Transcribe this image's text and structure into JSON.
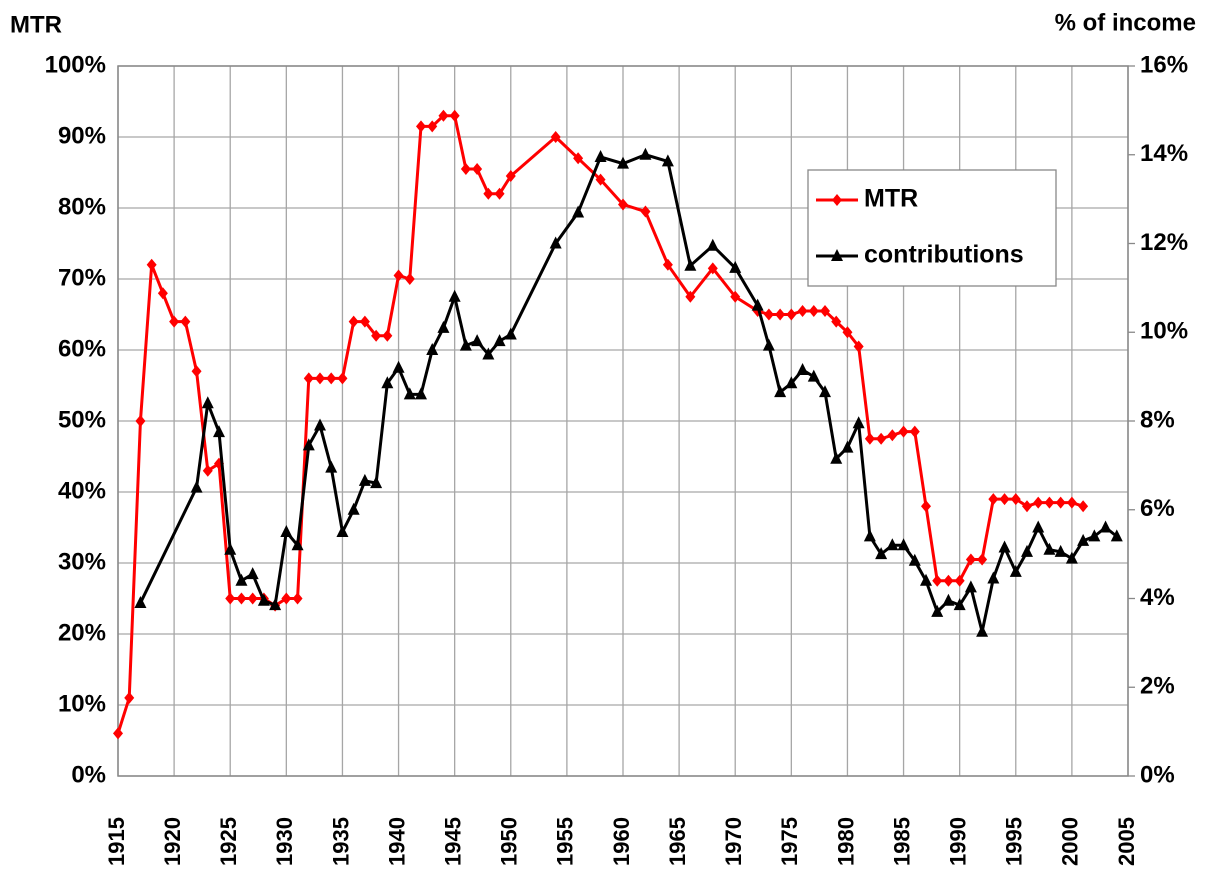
{
  "chart_data": {
    "type": "line",
    "y_label": "MTR",
    "y2_label": "% of  income",
    "xlim": [
      1915,
      2005
    ],
    "xticks": [
      1915,
      1920,
      1925,
      1930,
      1935,
      1940,
      1945,
      1950,
      1955,
      1960,
      1965,
      1970,
      1975,
      1980,
      1985,
      1990,
      1995,
      2000,
      2005
    ],
    "ylim": [
      0,
      100
    ],
    "yticks": [
      {
        "value": 0,
        "label": "0%"
      },
      {
        "value": 10,
        "label": "10%"
      },
      {
        "value": 20,
        "label": "20%"
      },
      {
        "value": 30,
        "label": "30%"
      },
      {
        "value": 40,
        "label": "40%"
      },
      {
        "value": 50,
        "label": "50%"
      },
      {
        "value": 60,
        "label": "60%"
      },
      {
        "value": 70,
        "label": "70%"
      },
      {
        "value": 80,
        "label": "80%"
      },
      {
        "value": 90,
        "label": "90%"
      },
      {
        "value": 100,
        "label": "100%"
      }
    ],
    "y2lim": [
      0,
      16
    ],
    "y2ticks": [
      {
        "value": 0,
        "label": "0%"
      },
      {
        "value": 2,
        "label": "2%"
      },
      {
        "value": 4,
        "label": "4%"
      },
      {
        "value": 6,
        "label": "6%"
      },
      {
        "value": 8,
        "label": "8%"
      },
      {
        "value": 10,
        "label": "10%"
      },
      {
        "value": 12,
        "label": "12%"
      },
      {
        "value": 14,
        "label": "14%"
      },
      {
        "value": 16,
        "label": "16%"
      }
    ],
    "grid": true,
    "legend": "upper right",
    "series": [
      {
        "name": "MTR",
        "color": "#ff0000",
        "marker": "diamond",
        "x": [
          1915,
          1916,
          1917,
          1918,
          1919,
          1920,
          1921,
          1922,
          1923,
          1924,
          1925,
          1926,
          1927,
          1928,
          1929,
          1930,
          1931,
          1932,
          1933,
          1934,
          1935,
          1936,
          1937,
          1938,
          1939,
          1940,
          1941,
          1942,
          1943,
          1944,
          1945,
          1946,
          1947,
          1948,
          1949,
          1950,
          1954,
          1956,
          1958,
          1960,
          1962,
          1964,
          1966,
          1968,
          1970,
          1972,
          1973,
          1974,
          1975,
          1976,
          1977,
          1978,
          1979,
          1980,
          1981,
          1982,
          1983,
          1984,
          1985,
          1986,
          1987,
          1988,
          1989,
          1990,
          1991,
          1992,
          1993,
          1994,
          1995,
          1996,
          1997,
          1998,
          1999,
          2000,
          2001
        ],
        "values": [
          6,
          11,
          50,
          72,
          68,
          64,
          64,
          57,
          43,
          44,
          25,
          25,
          25,
          25,
          24,
          25,
          25,
          56,
          56,
          56,
          56,
          64,
          64,
          62,
          62,
          70.5,
          70,
          91.5,
          91.5,
          93,
          93,
          85.5,
          85.5,
          82,
          82,
          84.5,
          90,
          87,
          84,
          80.5,
          79.5,
          72,
          67.5,
          71.5,
          67.5,
          65.5,
          65,
          65,
          65,
          65.5,
          65.5,
          65.5,
          64,
          62.5,
          60.5,
          47.5,
          47.5,
          48,
          48.5,
          48.5,
          38,
          27.5,
          27.5,
          27.5,
          30.5,
          30.5,
          39,
          39,
          39,
          38,
          38.5,
          38.5,
          38.5,
          38.5,
          38
        ]
      },
      {
        "name": "contributions",
        "color": "#000000",
        "marker": "triangle",
        "axis": "y2",
        "x": [
          1917,
          1922,
          1923,
          1924,
          1925,
          1926,
          1927,
          1928,
          1929,
          1930,
          1931,
          1932,
          1933,
          1934,
          1935,
          1936,
          1937,
          1938,
          1939,
          1940,
          1941,
          1942,
          1943,
          1944,
          1945,
          1946,
          1947,
          1948,
          1949,
          1950,
          1954,
          1956,
          1958,
          1960,
          1962,
          1964,
          1966,
          1968,
          1970,
          1972,
          1973,
          1974,
          1975,
          1976,
          1977,
          1978,
          1979,
          1980,
          1981,
          1982,
          1983,
          1984,
          1985,
          1986,
          1987,
          1988,
          1989,
          1990,
          1991,
          1992,
          1993,
          1994,
          1995,
          1996,
          1997,
          1998,
          1999,
          2000,
          2001,
          2002,
          2003,
          2004
        ],
        "values": [
          3.9,
          6.5,
          8.4,
          7.75,
          5.1,
          4.4,
          4.55,
          3.95,
          3.85,
          5.5,
          5.2,
          7.45,
          7.9,
          6.95,
          5.5,
          6.0,
          6.65,
          6.6,
          8.85,
          9.2,
          8.6,
          8.6,
          9.6,
          10.1,
          10.8,
          9.7,
          9.8,
          9.5,
          9.8,
          9.95,
          12.0,
          12.7,
          13.95,
          13.8,
          14.0,
          13.85,
          11.5,
          11.95,
          11.45,
          10.6,
          9.7,
          8.65,
          8.85,
          9.15,
          9.0,
          8.65,
          7.15,
          7.4,
          7.95,
          5.4,
          5.0,
          5.2,
          5.2,
          4.85,
          4.4,
          3.7,
          3.95,
          3.85,
          4.25,
          3.25,
          4.45,
          5.15,
          4.6,
          5.05,
          5.6,
          5.1,
          5.05,
          4.9,
          5.3,
          5.4,
          5.6,
          5.4
        ]
      }
    ]
  }
}
